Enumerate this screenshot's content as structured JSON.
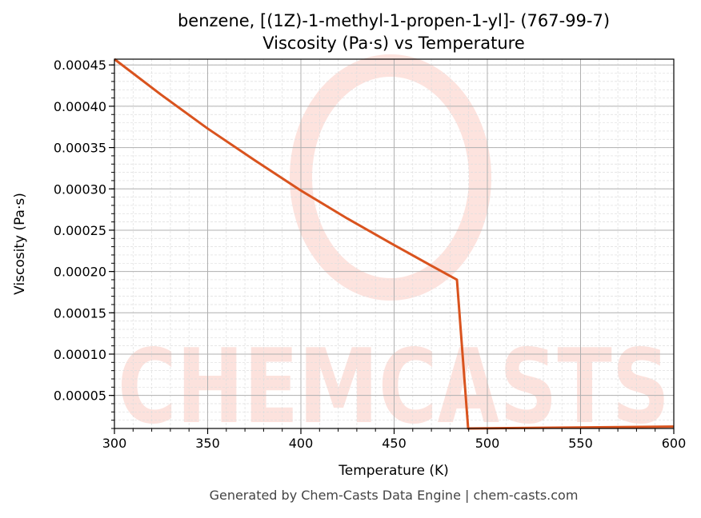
{
  "chart_data": {
    "type": "line",
    "title": "benzene, [(1Z)-1-methyl-1-propen-1-yl]- (767-99-7)",
    "subtitle": "Viscosity (Pa·s) vs Temperature",
    "xlabel": "Temperature (K)",
    "ylabel": "Viscosity (Pa·s)",
    "xlim": [
      300,
      600
    ],
    "ylim": [
      1e-05,
      0.000457
    ],
    "xticks": [
      300,
      350,
      400,
      450,
      500,
      550,
      600
    ],
    "yticks": [
      5e-05,
      0.0001,
      0.00015,
      0.0002,
      0.00025,
      0.0003,
      0.00035,
      0.0004,
      0.00045
    ],
    "ytick_labels": [
      "0.00005",
      "0.00010",
      "0.00015",
      "0.00020",
      "0.00025",
      "0.00030",
      "0.00035",
      "0.00040",
      "0.00045"
    ],
    "grid": true,
    "series": [
      {
        "name": "Viscosity",
        "color": "#d9531e",
        "x": [
          300,
          325,
          350,
          375,
          400,
          425,
          450,
          470,
          483.7,
          489.7,
          600
        ],
        "y": [
          0.000457,
          0.000414,
          0.000373,
          0.000335,
          0.000298,
          0.000264,
          0.000232,
          0.000207,
          0.00019,
          1e-05,
          1.23e-05
        ]
      }
    ]
  },
  "watermark": "CHEMCASTS",
  "footer": "Generated by Chem-Casts Data Engine | chem-casts.com"
}
